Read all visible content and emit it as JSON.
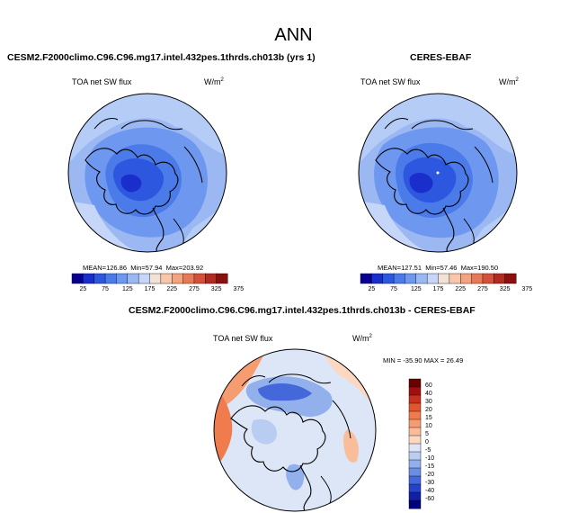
{
  "figure": {
    "title": "ANN"
  },
  "panels": {
    "model": {
      "title": "CESM2.F2000climo.C96.C96.mg17.intel.432pes.1thrds.ch013b (yrs 1)",
      "variable": "TOA net SW flux",
      "units": "W/m",
      "units_exp": "2",
      "stats": {
        "mean_label": "MEAN=",
        "mean": "126.86",
        "min_label": "Min=",
        "min": "57.94",
        "max_label": "Max=",
        "max": "203.92"
      }
    },
    "obs": {
      "title": "CERES-EBAF",
      "variable": "TOA net SW flux",
      "units": "W/m",
      "units_exp": "2",
      "stats": {
        "mean_label": "MEAN=",
        "mean": "127.51",
        "min_label": "Min=",
        "min": "57.46",
        "max_label": "Max=",
        "max": "190.50"
      }
    },
    "diff": {
      "title": "CESM2.F2000climo.C96.C96.mg17.intel.432pes.1thrds.ch013b - CERES-EBAF",
      "variable": "TOA net SW flux",
      "units": "W/m",
      "units_exp": "2",
      "stats": {
        "min_label": "MIN =",
        "min": "-35.90",
        "max_label": "MAX =",
        "max": "26.49"
      }
    }
  },
  "colorbars": {
    "main": {
      "ticks": [
        "25",
        "75",
        "125",
        "175",
        "225",
        "275",
        "325",
        "375"
      ],
      "colors": [
        "#08008f",
        "#1a2ecc",
        "#2d57df",
        "#4a7be9",
        "#6e98ef",
        "#9cb8f3",
        "#c5d6f8",
        "#f2e1d5",
        "#f8c6ad",
        "#f3a37f",
        "#e77a56",
        "#d3513a",
        "#b22b23",
        "#8a1010"
      ]
    },
    "diff": {
      "ticks": [
        "60",
        "40",
        "30",
        "20",
        "15",
        "10",
        "5",
        "0",
        "-5",
        "-10",
        "-15",
        "-20",
        "-30",
        "-40",
        "-60"
      ],
      "colors": [
        "#6a0000",
        "#a01010",
        "#c8301f",
        "#e2552f",
        "#f07b4c",
        "#f59c71",
        "#f9bd9a",
        "#fcd8c2",
        "#dce6f7",
        "#b9cdf3",
        "#91b0ec",
        "#6a8ee5",
        "#4468da",
        "#2742c8",
        "#1020a6",
        "#00007a"
      ]
    }
  },
  "colors": {
    "coast": "#000000",
    "main_low": "#1a2ecc",
    "main_mid": "#4a7be9",
    "main_high": "#9cb8f3",
    "diff_pos": "#f07b4c",
    "diff_neg": "#4468da"
  }
}
